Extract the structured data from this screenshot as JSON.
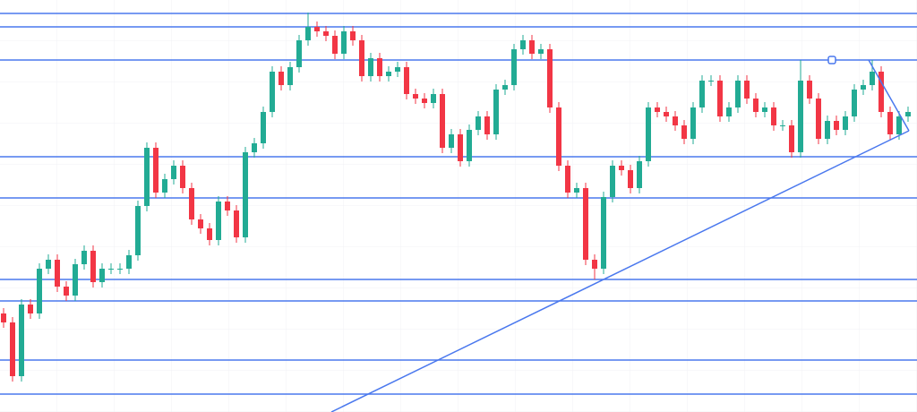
{
  "chart_data": {
    "type": "candlestick",
    "xlim": [
      -0.4,
      102
    ],
    "ylim": [
      0,
      460
    ],
    "up_color": "#22ab94",
    "down_color": "#f23645",
    "line_color": "#4a78ee",
    "open": [
      110,
      100,
      40,
      120,
      110,
      160,
      170,
      140,
      130,
      165,
      180,
      145,
      160,
      160,
      160,
      175,
      230,
      295,
      245,
      260,
      275,
      250,
      215,
      205,
      192,
      235,
      225,
      195,
      290,
      300,
      335,
      380,
      365,
      385,
      415,
      430,
      425,
      420,
      400,
      425,
      415,
      375,
      395,
      375,
      380,
      385,
      355,
      350,
      345,
      355,
      295,
      310,
      280,
      315,
      330,
      310,
      360,
      365,
      405,
      415,
      400,
      405,
      340,
      275,
      245,
      250,
      170,
      160,
      240,
      275,
      270,
      250,
      280,
      340,
      335,
      330,
      320,
      305,
      340,
      370,
      370,
      330,
      340,
      370,
      350,
      335,
      340,
      320,
      320,
      290,
      370,
      350,
      305,
      325,
      315,
      330,
      360,
      365,
      380,
      335,
      310,
      330
    ],
    "high": [
      116,
      106,
      126,
      126,
      166,
      176,
      176,
      146,
      171,
      186,
      186,
      166,
      166,
      166,
      181,
      236,
      301,
      301,
      266,
      281,
      281,
      256,
      221,
      211,
      241,
      241,
      231,
      296,
      306,
      341,
      386,
      386,
      391,
      421,
      446,
      436,
      431,
      426,
      431,
      431,
      421,
      401,
      401,
      386,
      391,
      391,
      361,
      356,
      361,
      361,
      316,
      316,
      321,
      336,
      336,
      366,
      371,
      411,
      421,
      421,
      411,
      411,
      346,
      281,
      256,
      256,
      176,
      246,
      281,
      281,
      276,
      286,
      346,
      346,
      341,
      336,
      326,
      346,
      376,
      376,
      376,
      346,
      376,
      376,
      356,
      346,
      346,
      326,
      326,
      393,
      376,
      356,
      331,
      331,
      336,
      366,
      371,
      393,
      386,
      341,
      336,
      341
    ],
    "low": [
      94,
      34,
      34,
      104,
      104,
      154,
      134,
      124,
      124,
      159,
      139,
      139,
      154,
      154,
      154,
      169,
      224,
      239,
      239,
      254,
      244,
      209,
      199,
      186,
      186,
      219,
      189,
      189,
      284,
      294,
      329,
      359,
      359,
      379,
      409,
      419,
      414,
      394,
      394,
      409,
      369,
      369,
      369,
      369,
      374,
      349,
      344,
      339,
      339,
      289,
      289,
      274,
      274,
      309,
      304,
      304,
      354,
      359,
      399,
      394,
      394,
      334,
      269,
      239,
      239,
      164,
      148,
      154,
      234,
      264,
      244,
      244,
      274,
      329,
      324,
      314,
      299,
      299,
      334,
      364,
      324,
      324,
      334,
      344,
      329,
      329,
      314,
      314,
      284,
      284,
      344,
      299,
      299,
      309,
      309,
      324,
      354,
      359,
      329,
      304,
      304,
      324
    ],
    "close": [
      100,
      40,
      120,
      110,
      160,
      170,
      140,
      130,
      165,
      180,
      145,
      160,
      160,
      160,
      175,
      230,
      295,
      245,
      260,
      275,
      250,
      215,
      205,
      192,
      235,
      225,
      195,
      290,
      300,
      335,
      380,
      365,
      385,
      415,
      430,
      425,
      420,
      400,
      425,
      415,
      375,
      395,
      375,
      380,
      385,
      355,
      350,
      345,
      355,
      295,
      310,
      280,
      315,
      330,
      310,
      360,
      365,
      405,
      415,
      400,
      405,
      340,
      275,
      245,
      250,
      170,
      160,
      240,
      275,
      270,
      250,
      280,
      340,
      335,
      330,
      320,
      305,
      340,
      370,
      370,
      330,
      340,
      370,
      350,
      335,
      340,
      320,
      320,
      290,
      370,
      350,
      305,
      325,
      315,
      330,
      360,
      365,
      380,
      335,
      310,
      330,
      335
    ],
    "levels": [
      445,
      430,
      393,
      285,
      239,
      148,
      124,
      58,
      20
    ],
    "trendlines": [
      {
        "x": [
          36.6,
          101.1
        ],
        "y": [
          0,
          314
        ]
      },
      {
        "x": [
          96.6,
          101.1
        ],
        "y": [
          393,
          314
        ]
      }
    ]
  }
}
